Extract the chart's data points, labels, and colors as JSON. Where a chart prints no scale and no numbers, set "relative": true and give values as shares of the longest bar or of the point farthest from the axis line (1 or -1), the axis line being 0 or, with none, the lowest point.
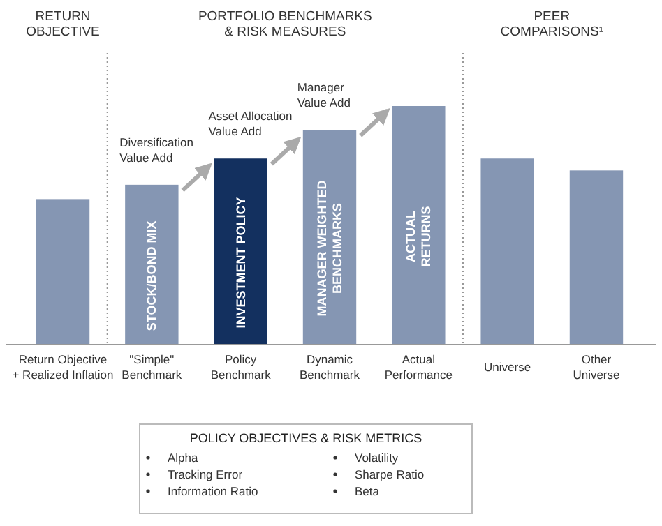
{
  "chart_data": {
    "type": "bar",
    "relative": true,
    "categories": [
      "Return Objective\n+ Realized Inflation",
      "\"Simple\"\nBenchmark",
      "Policy\nBenchmark",
      "Dynamic\nBenchmark",
      "Actual\nPerformance",
      "Universe",
      "Other\nUniverse"
    ],
    "values": [
      0.61,
      0.67,
      0.78,
      0.9,
      1,
      0.78,
      0.73
    ],
    "colors": [
      "#8596b3",
      "#8596b3",
      "#13305f",
      "#8596b3",
      "#8596b3",
      "#8596b3",
      "#8596b3"
    ],
    "annotations": [
      "RETURN\nOBJECTIVE",
      "PORTFOLIO BENCHMARKS\n& RISK MEASURES",
      "PEER\nCOMPARISONS¹",
      "STOCK/BOND MIX",
      "INVESTMENT POLICY",
      "MANAGER WEIGHTED\nBENCHMARKS",
      "ACTUAL\nRETURNS",
      "Diversification\nValue Add",
      "Asset Allocation\nValue Add",
      "Manager\nValue Add",
      "POLICY OBJECTIVES & RISK METRICS",
      "Alpha",
      "Tracking Error",
      "Information Ratio",
      "Volatility",
      "Sharpe Ratio",
      "Beta"
    ]
  }
}
